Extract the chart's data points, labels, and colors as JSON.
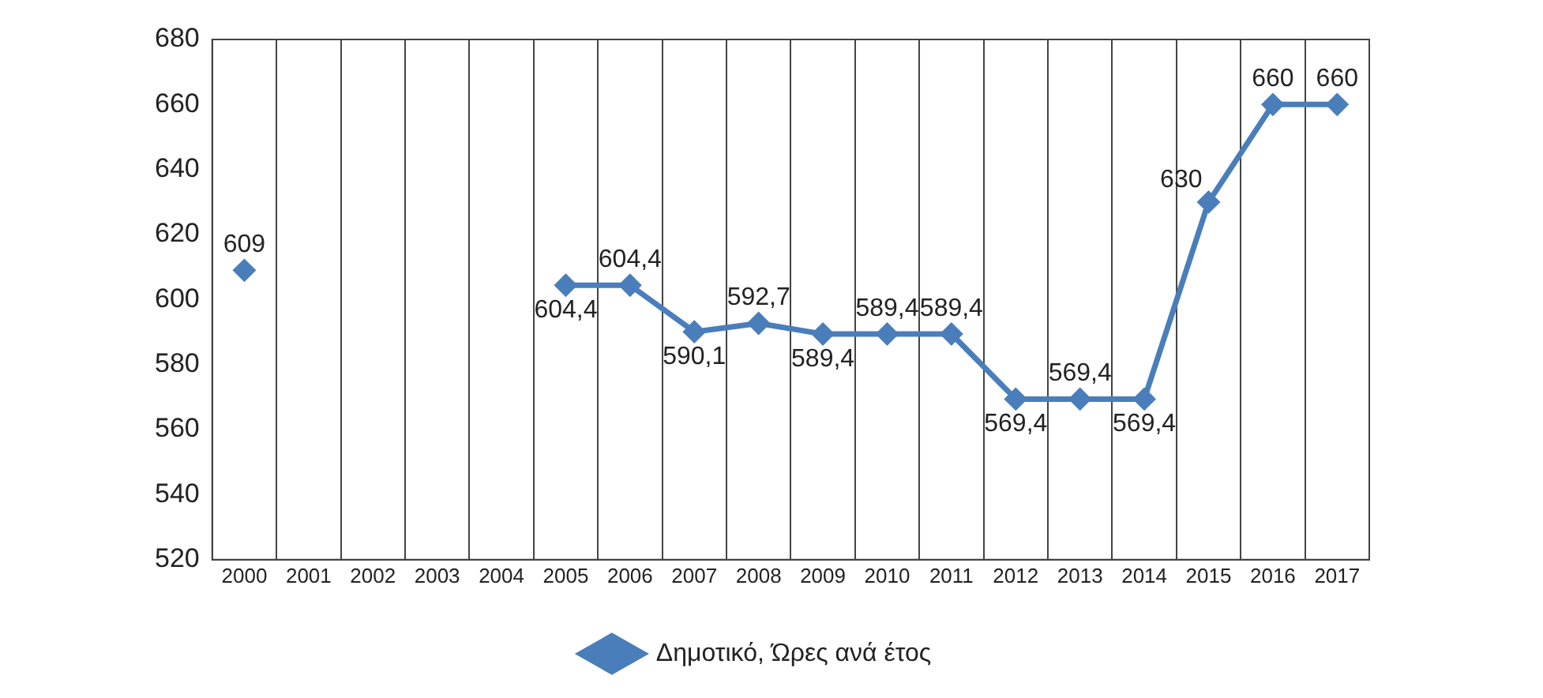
{
  "chart_data": {
    "type": "line",
    "categories": [
      "2000",
      "2001",
      "2002",
      "2003",
      "2004",
      "2005",
      "2006",
      "2007",
      "2008",
      "2009",
      "2010",
      "2011",
      "2012",
      "2013",
      "2014",
      "2015",
      "2016",
      "2017"
    ],
    "series": [
      {
        "name": "Δημοτικό, Ώρες ανά έτος",
        "color": "#4a7ebb",
        "values": [
          609,
          null,
          null,
          null,
          null,
          604.4,
          604.4,
          590.1,
          592.7,
          589.4,
          589.4,
          589.4,
          569.4,
          569.4,
          569.4,
          630,
          660,
          660
        ],
        "value_labels": [
          "609",
          null,
          null,
          null,
          null,
          "604,4",
          "604,4",
          "590,1",
          "592,7",
          "589,4",
          "589,4",
          "589,4",
          "569,4",
          "569,4",
          "569,4",
          "630",
          "660",
          "660"
        ]
      }
    ],
    "ylim": [
      520,
      680
    ],
    "yticks": [
      520,
      540,
      560,
      580,
      600,
      620,
      640,
      660,
      680
    ],
    "grid": "x",
    "legend": "bottom",
    "marker": "diamond",
    "line_style": "solid"
  }
}
